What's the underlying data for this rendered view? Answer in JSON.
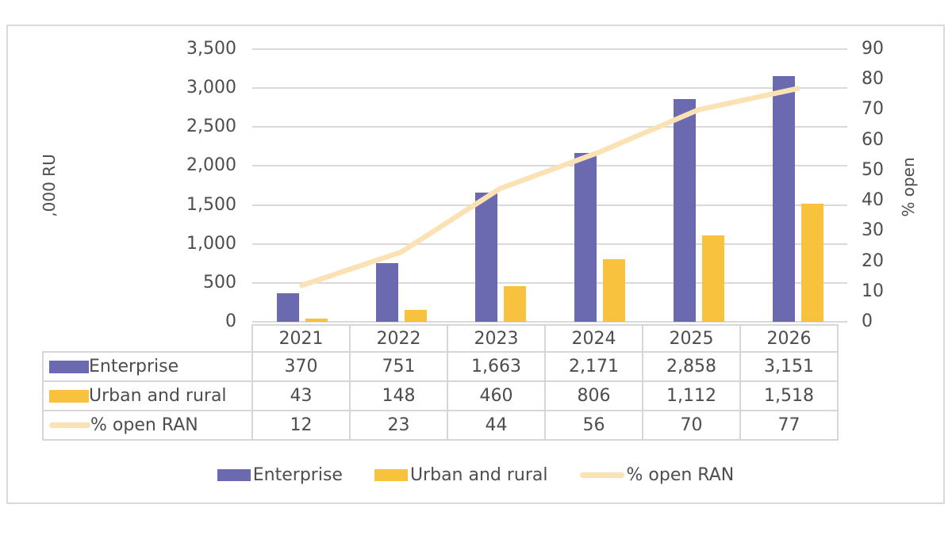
{
  "chart_data": {
    "type": "combo-bar-line",
    "categories": [
      "2021",
      "2022",
      "2023",
      "2024",
      "2025",
      "2026"
    ],
    "series": [
      {
        "name": "Enterprise",
        "type": "bar",
        "axis": "left",
        "color": "#6b69af",
        "values": [
          370,
          751,
          1663,
          2171,
          2858,
          3151
        ],
        "labels": [
          "370",
          "751",
          "1,663",
          "2,171",
          "2,858",
          "3,151"
        ]
      },
      {
        "name": "Urban and rural",
        "type": "bar",
        "axis": "left",
        "color": "#f9c23e",
        "values": [
          43,
          148,
          460,
          806,
          1112,
          1518
        ],
        "labels": [
          "43",
          "148",
          "460",
          "806",
          "1,112",
          "1,518"
        ]
      },
      {
        "name": "% open RAN",
        "type": "line",
        "axis": "right",
        "color": "#fae2b4",
        "values": [
          12,
          23,
          44,
          56,
          70,
          77
        ],
        "labels": [
          "12",
          "23",
          "44",
          "56",
          "70",
          "77"
        ]
      }
    ],
    "left_axis": {
      "title": ",000 RU",
      "min": 0,
      "max": 3500,
      "step": 500,
      "tick_labels": [
        "0",
        "500",
        "1,000",
        "1,500",
        "2,000",
        "2,500",
        "3,000",
        "3,500"
      ]
    },
    "right_axis": {
      "title": "% open",
      "min": 0,
      "max": 90,
      "step": 10,
      "tick_labels": [
        "0",
        "10",
        "20",
        "30",
        "40",
        "50",
        "60",
        "70",
        "80",
        "90"
      ]
    },
    "grid": true,
    "legend_position": "bottom",
    "data_table_shown": true,
    "colors": {
      "gridline": "#d9d9d9",
      "table_border": "#d6d6d6",
      "figure_border": "#d9d9d9",
      "text": "#4d4d4d",
      "background": "#ffffff"
    }
  }
}
